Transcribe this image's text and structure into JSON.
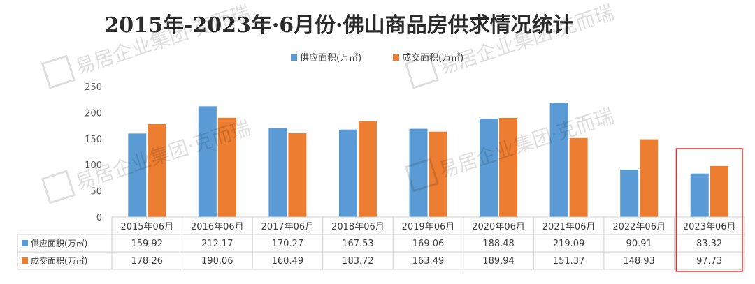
{
  "chart_data": {
    "type": "bar",
    "title": "2015年-2023年·6月份·佛山商品房供求情况统计",
    "categories": [
      "2015年06月",
      "2016年06月",
      "2017年06月",
      "2018年06月",
      "2019年06月",
      "2020年06月",
      "2021年06月",
      "2022年06月",
      "2023年06月"
    ],
    "series": [
      {
        "name": "供应面积(万㎡)",
        "color": "#5b9bd5",
        "values": [
          159.92,
          212.17,
          170.27,
          167.53,
          169.06,
          188.48,
          219.09,
          90.91,
          83.32
        ],
        "labels": [
          "159.92",
          "212.17",
          "170.27",
          "167.53",
          "169.06",
          "188.48",
          "219.09",
          "90.91",
          "83.32"
        ]
      },
      {
        "name": "成交面积(万㎡)",
        "color": "#ed7d31",
        "values": [
          178.26,
          190.06,
          160.49,
          183.72,
          163.49,
          189.94,
          151.37,
          148.93,
          97.73
        ],
        "labels": [
          "178.26",
          "190.06",
          "160.49",
          "183.72",
          "163.49",
          "189.94",
          "151.37",
          "148.93",
          "97.73"
        ]
      }
    ],
    "y_ticks": [
      "0",
      "50",
      "100",
      "150",
      "200",
      "250"
    ],
    "ylim": [
      0,
      250
    ],
    "grid": false,
    "legend_position": "top-center",
    "data_table": true,
    "highlight_category": "2023年06月",
    "highlight_color": "#e8302e"
  },
  "watermark": {
    "text": "易居企业集团·克而瑞"
  }
}
